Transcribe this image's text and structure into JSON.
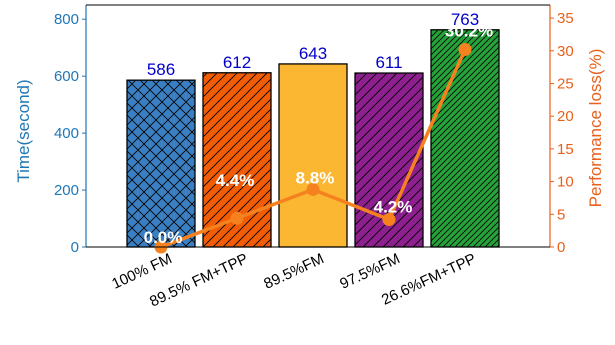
{
  "chart_data": {
    "type": "bar",
    "categories": [
      "100% FM",
      "89.5% FM+TPP",
      "89.5%FM",
      "97.5%FM",
      "26.6%FM+TPP"
    ],
    "series": [
      {
        "name": "Time(second)",
        "axis": "left",
        "values": [
          586,
          612,
          643,
          611,
          763
        ],
        "value_labels": [
          "586",
          "612",
          "643",
          "611",
          "763"
        ]
      },
      {
        "name": "Performance loss(%)",
        "axis": "right",
        "type": "line",
        "values": [
          0.0,
          4.4,
          8.8,
          4.2,
          30.2
        ],
        "value_labels": [
          "0.0%",
          "4.4%",
          "8.8%",
          "4.2%",
          "30.2%"
        ]
      }
    ],
    "bar_styles": [
      {
        "fill": "#3a7fc1",
        "hatch": "cross"
      },
      {
        "fill": "#f25c05",
        "hatch": "diag"
      },
      {
        "fill": "#fbb731",
        "hatch": "none"
      },
      {
        "fill": "#8e1f8e",
        "hatch": "diag"
      },
      {
        "fill": "#25a33a",
        "hatch": "diagdense"
      }
    ],
    "ylabel_left": "Time(second)",
    "ylabel_right": "Performance loss(%)",
    "ylim_left": [
      0,
      850
    ],
    "ylim_right": [
      0,
      37
    ],
    "yticks_left": [
      0,
      200,
      400,
      600,
      800
    ],
    "yticks_right": [
      0,
      5,
      10,
      15,
      20,
      25,
      30,
      35
    ],
    "colors": {
      "left_axis": "#1f77b4",
      "right_axis": "#e8601c",
      "line": "#f5821f",
      "value_label": "#0000cc",
      "percent_label": "#ffffff"
    },
    "grid": false,
    "legend": "none"
  }
}
